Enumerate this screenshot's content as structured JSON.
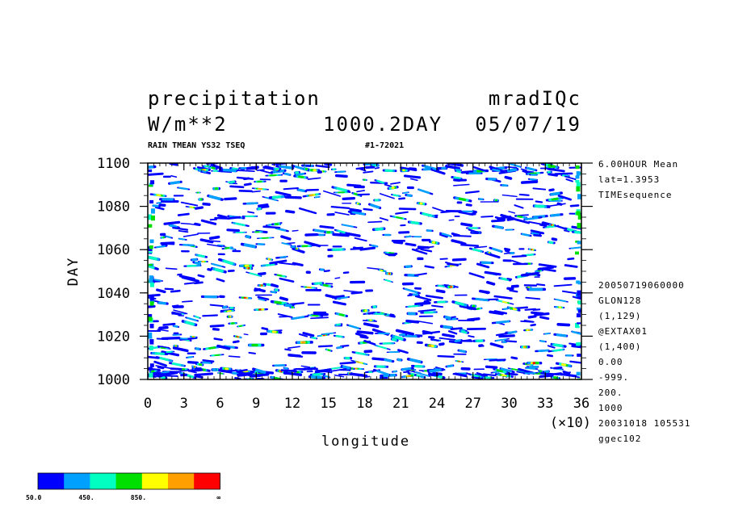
{
  "header": {
    "title_left": "precipitation",
    "title_right": "mradIQc",
    "unit": "W/m**2",
    "time_label": "1000.2DAY",
    "date_label": "05/07/19",
    "subtitle_left": "RAIN TMEAN YS32 TSEQ",
    "subtitle_right": "#1-72021"
  },
  "side_info": {
    "top": [
      "6.00HOUR Mean",
      "lat=1.3953",
      "TIMEsequence"
    ],
    "bottom": [
      "20050719060000",
      "GLON128",
      "(1,129)",
      "@EXTAX01",
      "(1,400)",
      "0.00",
      "-999.",
      "200.",
      "1000",
      "20031018 105531",
      "ggec102"
    ]
  },
  "colorbar": {
    "colors": [
      "#0000ff",
      "#00a0ff",
      "#00ffc0",
      "#00e000",
      "#ffff00",
      "#ffa000",
      "#ff0000"
    ],
    "labels": [
      "50.0",
      "450.",
      "850.",
      "∞"
    ]
  },
  "chart_data": {
    "type": "heatmap",
    "xlabel": "longitude",
    "ylabel": "DAY",
    "x_multiplier": "(×10)",
    "xlim": [
      0,
      36
    ],
    "ylim": [
      1000,
      1100
    ],
    "x_ticks": [
      0,
      3,
      6,
      9,
      12,
      15,
      18,
      21,
      24,
      27,
      30,
      33,
      36
    ],
    "y_ticks": [
      1000,
      1020,
      1040,
      1060,
      1080,
      1100
    ],
    "levels": [
      50,
      250,
      450,
      650,
      850,
      1050,
      1250
    ],
    "legend_position": "bottom-left"
  }
}
